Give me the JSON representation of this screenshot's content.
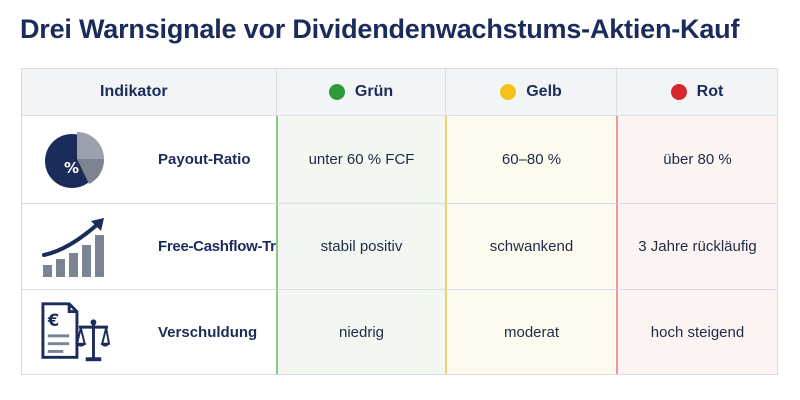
{
  "title": "Drei Warnsignale vor Dividendenwachstums-Aktien-Kauf",
  "header": {
    "indicator": "Indikator",
    "green": "Grün",
    "yellow": "Gelb",
    "red": "Rot"
  },
  "colors": {
    "green": "#2e9b3a",
    "yellow": "#f2c21b",
    "red": "#d9262b",
    "navy": "#1b2c5a"
  },
  "rows": [
    {
      "icon": "pie-chart-percent-icon",
      "label": "Payout-Ratio",
      "green": "unter 60 % FCF",
      "yellow": "60–80 %",
      "red": "über 80 %"
    },
    {
      "icon": "rising-bars-arrow-icon",
      "label": "Free-Cashflow-Trend",
      "green": "stabil positiv",
      "yellow": "schwankend",
      "red": "3 Jahre rückläufig"
    },
    {
      "icon": "euro-document-scales-icon",
      "label": "Verschuldung",
      "green": "niedrig",
      "yellow": "moderat",
      "red": "hoch steigend"
    }
  ]
}
